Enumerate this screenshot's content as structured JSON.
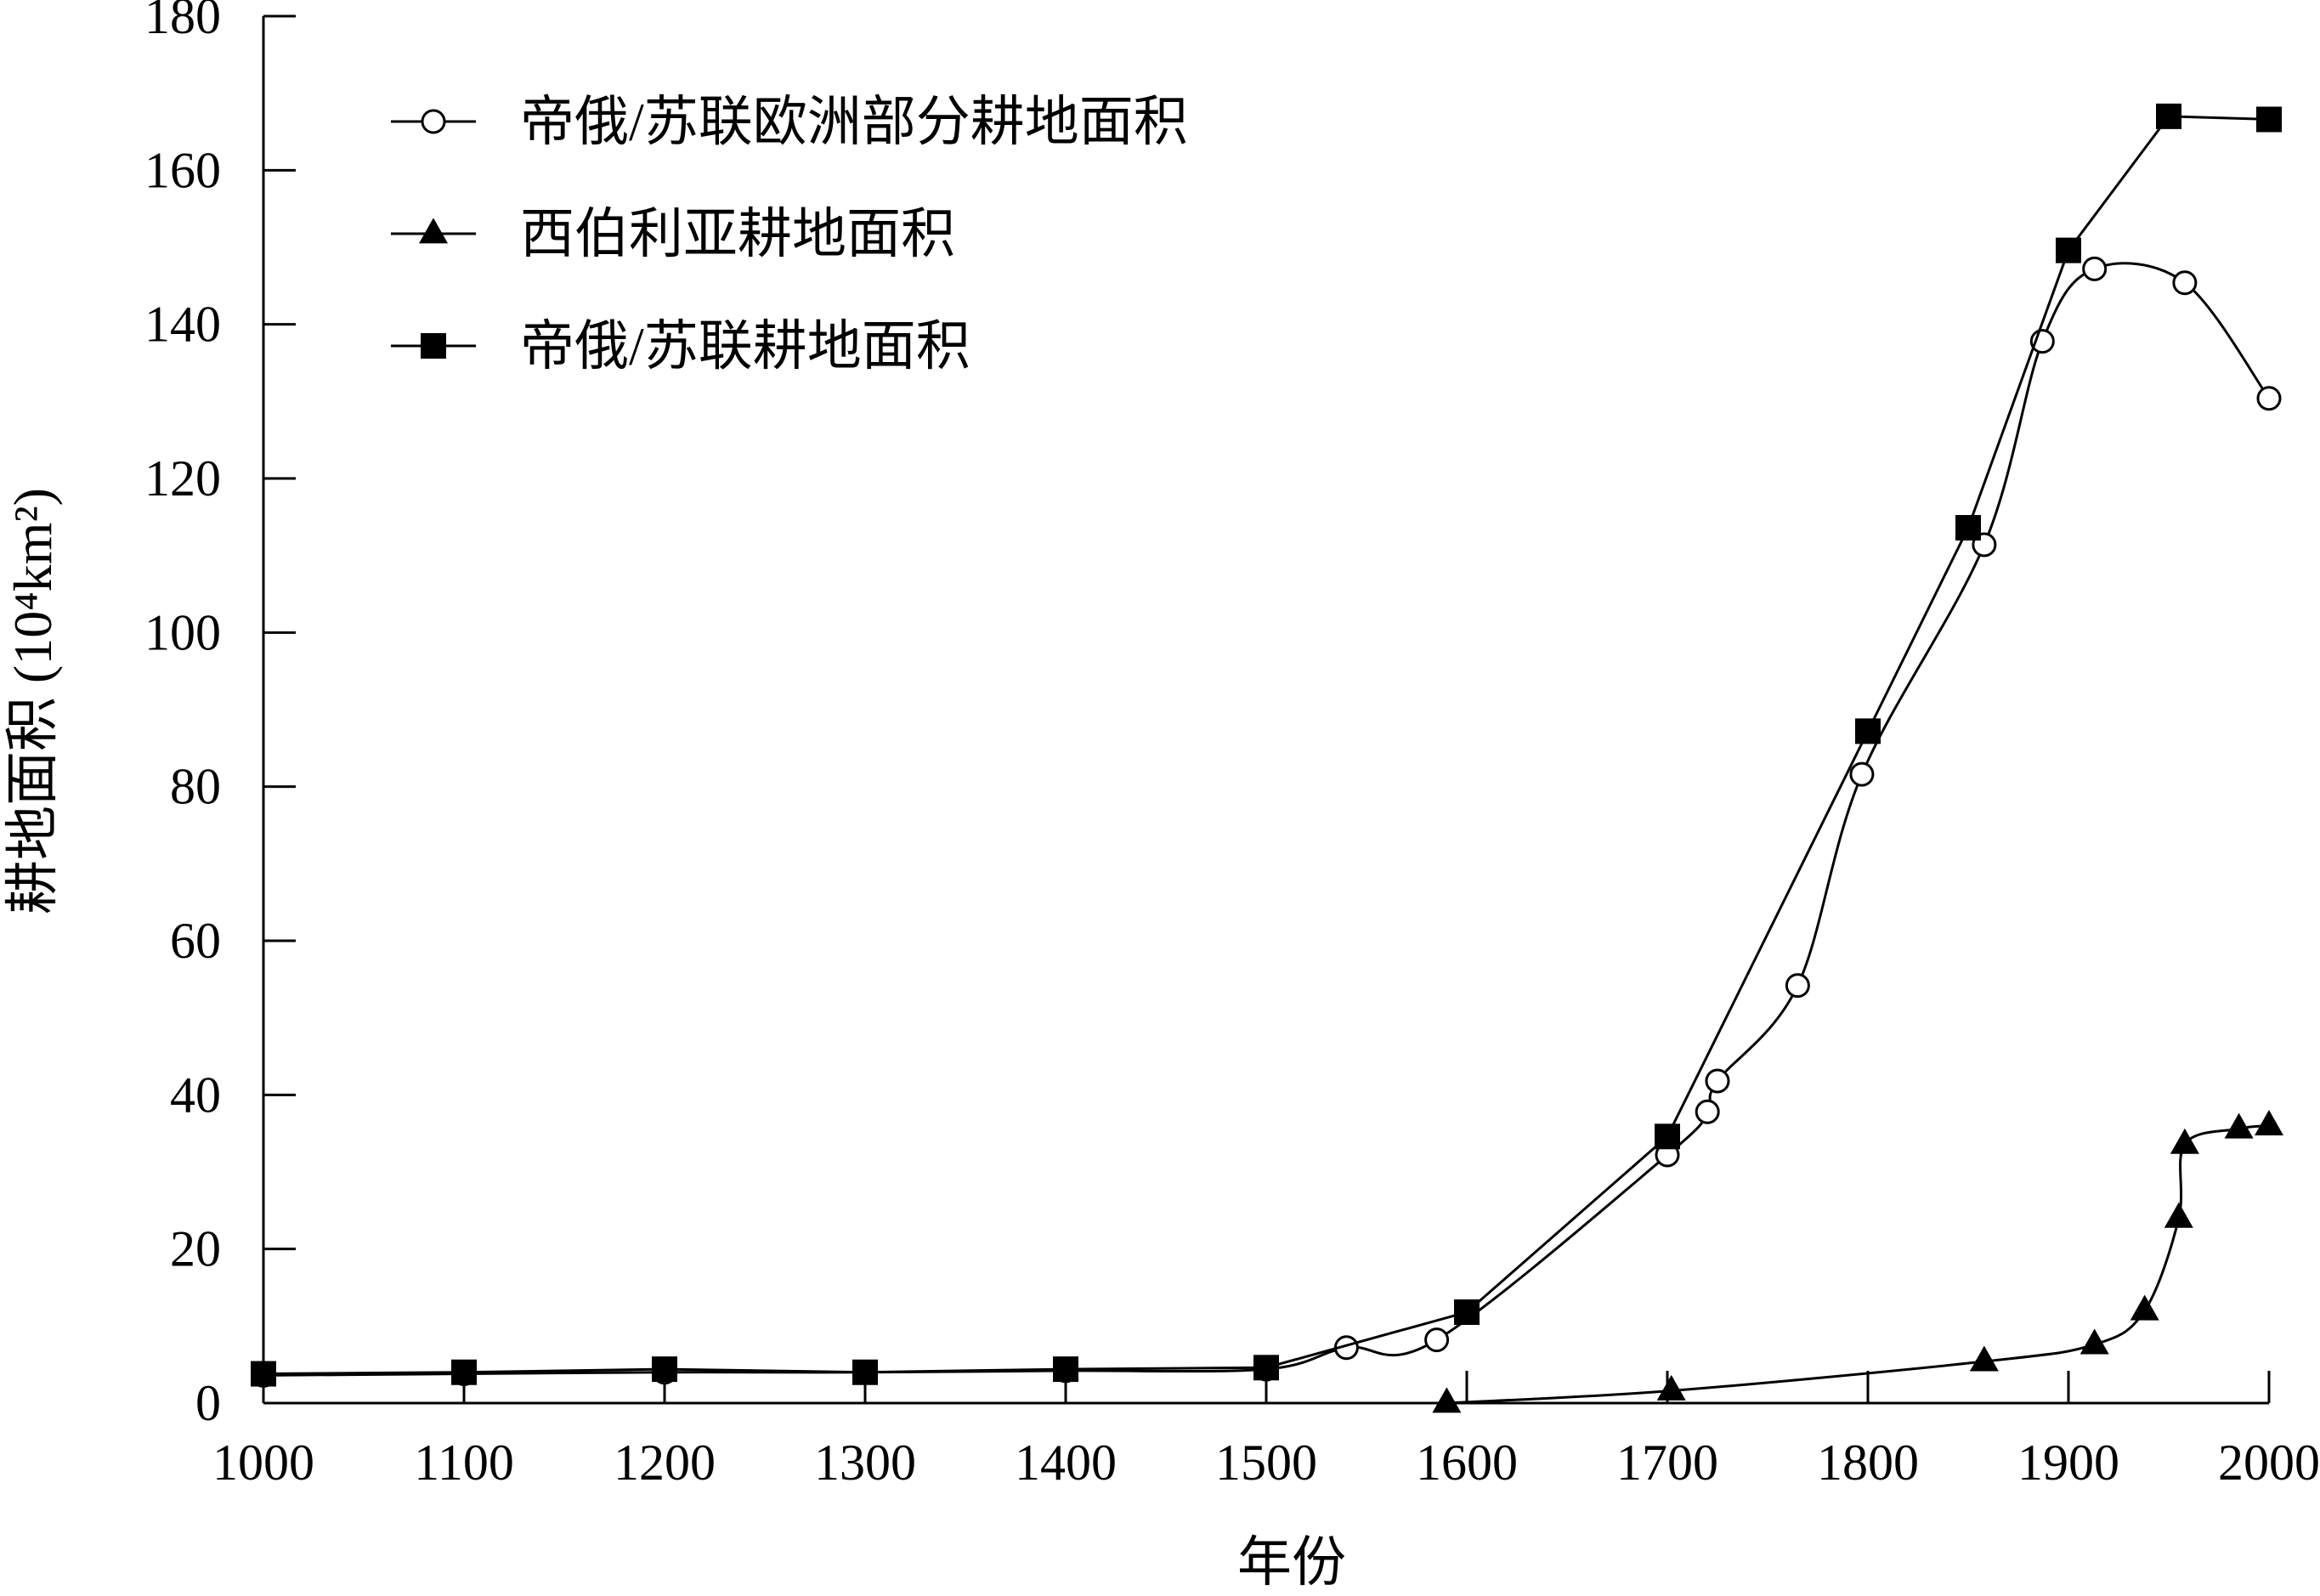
{
  "chart_data": {
    "type": "line",
    "title": "",
    "xlabel": "年份",
    "ylabel": "耕地面积 (10⁴km²)",
    "xlim": [
      1000,
      2000
    ],
    "ylim": [
      0,
      180
    ],
    "xticks": [
      1000,
      1100,
      1200,
      1300,
      1400,
      1500,
      1600,
      1700,
      1800,
      1900,
      2000
    ],
    "yticks": [
      0,
      20,
      40,
      60,
      80,
      100,
      120,
      140,
      160,
      180
    ],
    "grid": false,
    "legend_position": "top-left",
    "series": [
      {
        "name": "帝俄/苏联欧洲部分耕地面积",
        "marker": "open-circle",
        "color": "#000000",
        "x": [
          1000,
          1100,
          1200,
          1300,
          1400,
          1500,
          1540,
          1585,
          1700,
          1720,
          1725,
          1765,
          1797,
          1858,
          1887,
          1913,
          1958,
          2000
        ],
        "y": [
          3.6,
          3.8,
          4.0,
          4.0,
          4.2,
          4.4,
          7.2,
          8.2,
          32.2,
          37.8,
          41.8,
          54.2,
          81.6,
          111.4,
          137.8,
          147.2,
          145.4,
          130.4
        ]
      },
      {
        "name": "西伯利亚耕地面积",
        "marker": "filled-triangle",
        "color": "#000000",
        "x": [
          1590,
          1702,
          1858,
          1913,
          1938,
          1955,
          1958,
          1985,
          2000
        ],
        "y": [
          0.0,
          1.6,
          5.4,
          7.6,
          12.0,
          24.0,
          33.6,
          35.6,
          36.0
        ]
      },
      {
        "name": "帝俄/苏联耕地面积",
        "marker": "filled-square",
        "color": "#000000",
        "x": [
          1000,
          1100,
          1200,
          1300,
          1400,
          1500,
          1600,
          1700,
          1800,
          1850,
          1900,
          1950,
          2000
        ],
        "y": [
          3.8,
          4.0,
          4.4,
          4.0,
          4.4,
          4.6,
          11.8,
          34.6,
          87.2,
          113.6,
          149.6,
          167.0,
          166.6
        ]
      }
    ]
  }
}
